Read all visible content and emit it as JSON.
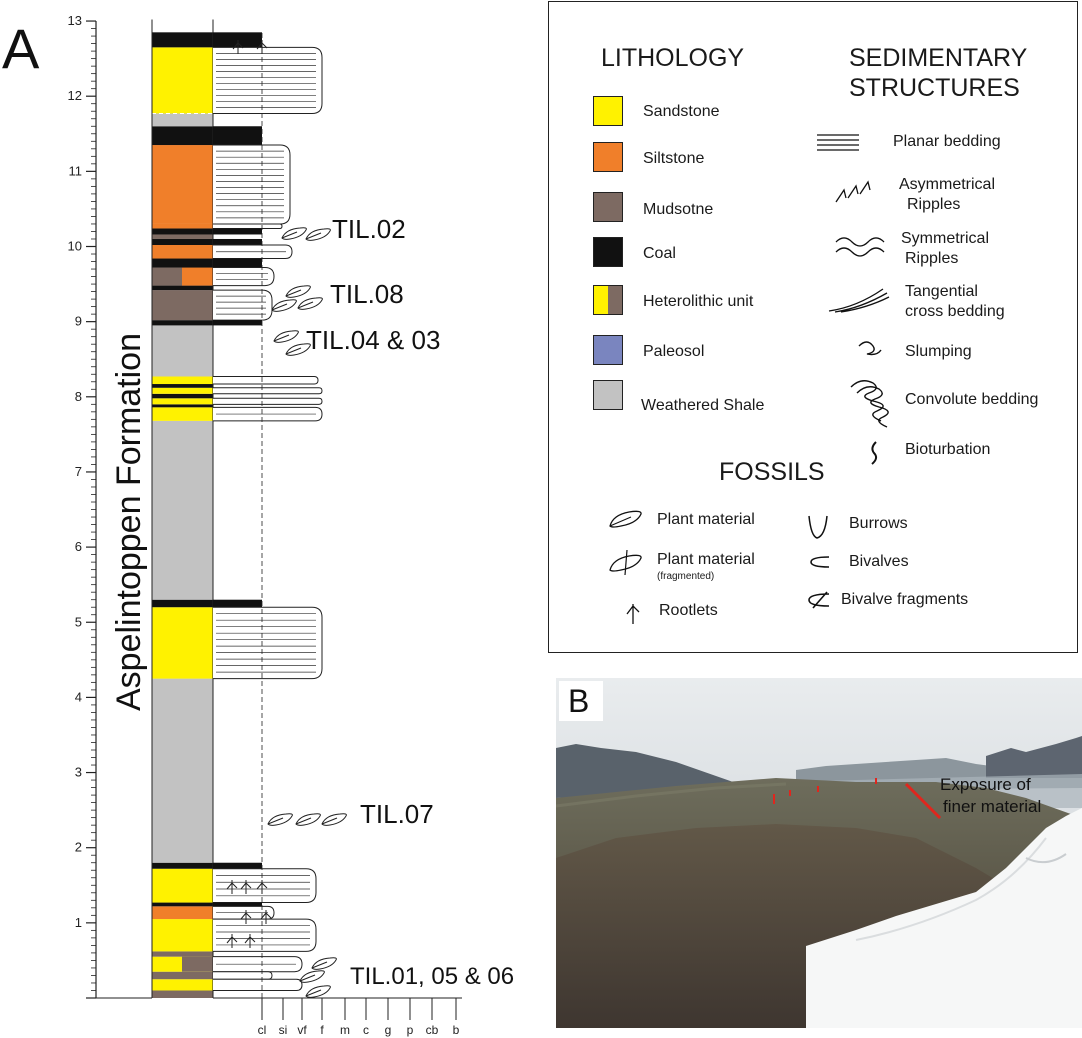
{
  "panel_a": {
    "label": "A",
    "formation": "Aspelintoppen Formation",
    "depth_ticks": [
      "1",
      "2",
      "3",
      "4",
      "5",
      "6",
      "7",
      "8",
      "9",
      "10",
      "11",
      "12",
      "13"
    ],
    "grain_size_ticks": [
      "cl",
      "si",
      "vf",
      "f",
      "m",
      "c",
      "g",
      "p",
      "cb",
      "b"
    ],
    "samples": [
      {
        "label": "TIL.01, 05 & 06",
        "height_m": 0.35
      },
      {
        "label": "TIL.07",
        "height_m": 2.45
      },
      {
        "label": "TIL.04 & 03",
        "height_m": 8.65
      },
      {
        "label": "TIL.08",
        "height_m": 9.25
      },
      {
        "label": "TIL.02",
        "height_m": 10.15
      }
    ],
    "units": [
      {
        "from": 0.0,
        "to": 0.1,
        "lith": "mudstone"
      },
      {
        "from": 0.1,
        "to": 0.25,
        "lith": "sandstone"
      },
      {
        "from": 0.25,
        "to": 0.35,
        "lith": "mudstone"
      },
      {
        "from": 0.35,
        "to": 0.55,
        "lith": "heterolithic_ss"
      },
      {
        "from": 0.55,
        "to": 0.62,
        "lith": "mudstone"
      },
      {
        "from": 0.62,
        "to": 1.05,
        "lith": "sandstone"
      },
      {
        "from": 1.05,
        "to": 1.22,
        "lith": "siltstone"
      },
      {
        "from": 1.22,
        "to": 1.27,
        "lith": "coal"
      },
      {
        "from": 1.27,
        "to": 1.72,
        "lith": "sandstone"
      },
      {
        "from": 1.72,
        "to": 1.8,
        "lith": "coal"
      },
      {
        "from": 1.8,
        "to": 4.25,
        "lith": "weathered"
      },
      {
        "from": 4.25,
        "to": 5.2,
        "lith": "sandstone"
      },
      {
        "from": 5.2,
        "to": 5.3,
        "lith": "coal"
      },
      {
        "from": 5.3,
        "to": 7.68,
        "lith": "weathered"
      },
      {
        "from": 7.68,
        "to": 7.86,
        "lith": "sandstone"
      },
      {
        "from": 7.86,
        "to": 7.9,
        "lith": "coal"
      },
      {
        "from": 7.9,
        "to": 7.98,
        "lith": "sandstone"
      },
      {
        "from": 7.98,
        "to": 8.04,
        "lith": "coal"
      },
      {
        "from": 8.04,
        "to": 8.12,
        "lith": "sandstone"
      },
      {
        "from": 8.12,
        "to": 8.17,
        "lith": "coal"
      },
      {
        "from": 8.17,
        "to": 8.27,
        "lith": "sandstone"
      },
      {
        "from": 8.27,
        "to": 8.95,
        "lith": "weathered"
      },
      {
        "from": 8.95,
        "to": 9.02,
        "lith": "coal"
      },
      {
        "from": 9.02,
        "to": 9.42,
        "lith": "mudstone"
      },
      {
        "from": 9.42,
        "to": 9.48,
        "lith": "coal"
      },
      {
        "from": 9.48,
        "to": 9.72,
        "lith": "heterolithic_silt"
      },
      {
        "from": 9.72,
        "to": 9.84,
        "lith": "coal"
      },
      {
        "from": 9.84,
        "to": 10.02,
        "lith": "siltstone"
      },
      {
        "from": 10.02,
        "to": 10.1,
        "lith": "coal"
      },
      {
        "from": 10.1,
        "to": 10.16,
        "lith": "mudstone"
      },
      {
        "from": 10.16,
        "to": 10.24,
        "lith": "coal"
      },
      {
        "from": 10.24,
        "to": 10.3,
        "lith": "siltstone"
      },
      {
        "from": 10.3,
        "to": 11.35,
        "lith": "siltstone"
      },
      {
        "from": 11.35,
        "to": 11.6,
        "lith": "coal"
      },
      {
        "from": 11.6,
        "to": 11.77,
        "lith": "weathered"
      },
      {
        "from": 11.77,
        "to": 12.65,
        "lith": "sandstone"
      },
      {
        "from": 12.65,
        "to": 12.85,
        "lith": "coal"
      }
    ]
  },
  "legend": {
    "lithology_title": "LITHOLOGY",
    "structures_title": [
      "SEDIMENTARY",
      "STRUCTURES"
    ],
    "fossils_title": "FOSSILS",
    "lithology": [
      {
        "label": "Sandstone",
        "color": "#FFF200"
      },
      {
        "label": "Siltstone",
        "color": "#F07F2A"
      },
      {
        "label": "Mudsotne",
        "color": "#7D6A62"
      },
      {
        "label": "Coal",
        "color": "#111111"
      },
      {
        "label": "Heterolithic unit",
        "color": "#FFF200",
        "color2": "#7D6A62"
      },
      {
        "label": "Paleosol",
        "color": "#7A85BF"
      },
      {
        "label": "Weathered Shale",
        "color": "#C2C2C2"
      }
    ],
    "structures": [
      {
        "label": "Planar bedding",
        "icon": "planar-bedding-icon"
      },
      {
        "label": "Asymmetrical",
        "label2": "Ripples",
        "icon": "asymmetrical-ripples-icon"
      },
      {
        "label": "Symmetrical",
        "label2": "Ripples",
        "icon": "symmetrical-ripples-icon"
      },
      {
        "label": "Tangential",
        "label2": "cross bedding",
        "icon": "tangential-cross-bedding-icon"
      },
      {
        "label": "Slumping",
        "icon": "slumping-icon"
      },
      {
        "label": "Convolute bedding",
        "icon": "convolute-bedding-icon"
      },
      {
        "label": "Bioturbation",
        "icon": "bioturbation-icon"
      }
    ],
    "fossils": [
      {
        "label": "Plant material",
        "icon": "plant-material-icon"
      },
      {
        "label": "Plant material",
        "sublabel": "(fragmented)",
        "icon": "plant-fragmented-icon"
      },
      {
        "label": "Rootlets",
        "icon": "rootlets-icon"
      },
      {
        "label": "Burrows",
        "icon": "burrows-icon"
      },
      {
        "label": "Bivalves",
        "icon": "bivalves-icon"
      },
      {
        "label": "Bivalve fragments",
        "icon": "bivalve-fragments-icon"
      }
    ]
  },
  "panel_b": {
    "label": "B",
    "annotation": [
      "Exposure of",
      "finer material"
    ],
    "colors": {
      "annotation_line": "#E0261E"
    }
  }
}
